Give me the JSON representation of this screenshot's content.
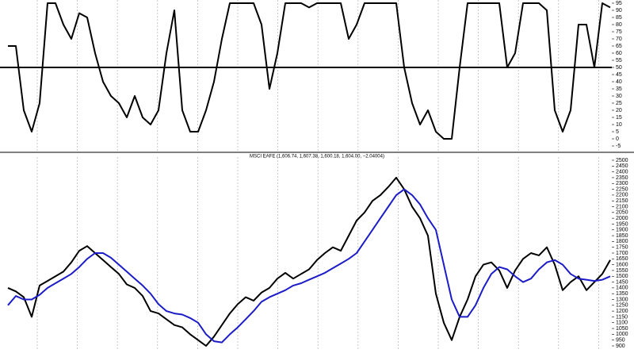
{
  "chart_data": [
    {
      "type": "line",
      "series": [
        {
          "color": "#000000",
          "values": [
            65,
            65,
            20,
            5,
            25,
            95,
            95,
            80,
            70,
            88,
            85,
            60,
            40,
            30,
            25,
            15,
            30,
            15,
            10,
            20,
            60,
            90,
            20,
            5,
            5,
            20,
            40,
            70,
            95,
            95,
            95,
            95,
            80,
            35,
            60,
            95,
            95,
            95,
            92,
            95,
            95,
            95,
            95,
            70,
            80,
            95,
            95,
            95,
            95,
            95,
            50,
            25,
            10,
            20,
            5,
            0,
            0,
            50,
            95,
            95,
            95,
            95,
            95,
            50,
            60,
            95,
            95,
            95,
            90,
            20,
            5,
            20,
            80,
            80,
            50,
            95,
            92
          ]
        }
      ],
      "reference_line": 50,
      "ylim": [
        -5,
        95
      ],
      "yticks": [
        95,
        90,
        85,
        80,
        75,
        70,
        65,
        60,
        55,
        50,
        45,
        40,
        35,
        30,
        25,
        20,
        15,
        10,
        5,
        0,
        -5
      ],
      "grid": true
    },
    {
      "type": "line",
      "title": "MSCI EAFE (1,606.74, 1,607.38, 1,600.18, 1,604.00, −2.04004)",
      "series": [
        {
          "color": "#000000",
          "values": [
            1400,
            1370,
            1320,
            1150,
            1420,
            1460,
            1500,
            1540,
            1620,
            1720,
            1760,
            1700,
            1640,
            1580,
            1520,
            1430,
            1400,
            1330,
            1200,
            1180,
            1130,
            1080,
            1060,
            1000,
            950,
            900,
            980,
            1080,
            1180,
            1260,
            1320,
            1290,
            1360,
            1400,
            1480,
            1530,
            1480,
            1520,
            1560,
            1640,
            1700,
            1750,
            1720,
            1850,
            1980,
            2050,
            2150,
            2200,
            2270,
            2350,
            2250,
            2100,
            2000,
            1850,
            1350,
            1100,
            950,
            1150,
            1300,
            1500,
            1600,
            1620,
            1550,
            1400,
            1550,
            1650,
            1700,
            1680,
            1750,
            1600,
            1380,
            1450,
            1500,
            1380,
            1450,
            1520,
            1640
          ]
        },
        {
          "color": "#1c1cc8",
          "values": [
            1250,
            1330,
            1300,
            1300,
            1340,
            1400,
            1440,
            1480,
            1520,
            1580,
            1650,
            1700,
            1700,
            1660,
            1600,
            1540,
            1480,
            1420,
            1350,
            1260,
            1200,
            1180,
            1170,
            1140,
            1100,
            1000,
            940,
            930,
            1000,
            1060,
            1130,
            1200,
            1280,
            1320,
            1350,
            1380,
            1420,
            1440,
            1470,
            1500,
            1530,
            1570,
            1610,
            1650,
            1700,
            1800,
            1900,
            2000,
            2100,
            2200,
            2250,
            2200,
            2120,
            2000,
            1900,
            1600,
            1300,
            1150,
            1150,
            1250,
            1400,
            1520,
            1580,
            1560,
            1500,
            1450,
            1480,
            1560,
            1620,
            1640,
            1600,
            1520,
            1480,
            1470,
            1460,
            1470,
            1500
          ]
        }
      ],
      "ylim": [
        900,
        2500
      ],
      "yticks": [
        2500,
        2450,
        2400,
        2350,
        2300,
        2250,
        2200,
        2150,
        2100,
        2050,
        2000,
        1950,
        1900,
        1850,
        1800,
        1750,
        1700,
        1650,
        1600,
        1550,
        1500,
        1450,
        1400,
        1350,
        1300,
        1250,
        1200,
        1150,
        1100,
        1050,
        1000,
        950,
        900
      ],
      "grid": true
    }
  ]
}
